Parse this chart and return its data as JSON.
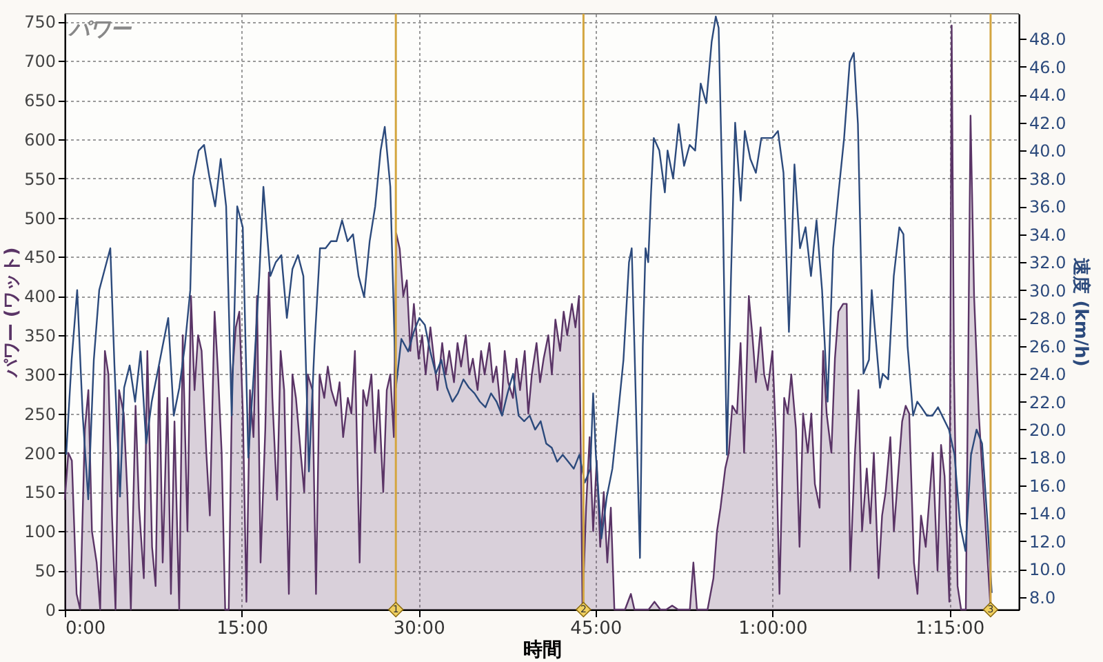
{
  "chart_data": {
    "type": "area",
    "title": "パワー",
    "xlabel": "時間",
    "ylabel": "パワー (ワット)",
    "y2label": "速度 (km/h)",
    "xlim": [
      0,
      80.9
    ],
    "xticks": [
      {
        "value": 0,
        "label": "0:00"
      },
      {
        "value": 15,
        "label": "15:00"
      },
      {
        "value": 30,
        "label": "30:00"
      },
      {
        "value": 45,
        "label": "45:00"
      },
      {
        "value": 60,
        "label": "1:00:00"
      },
      {
        "value": 75,
        "label": "1:15:00"
      }
    ],
    "ylim": [
      0,
      760
    ],
    "yticks": [
      0,
      50,
      100,
      150,
      200,
      250,
      300,
      350,
      400,
      450,
      500,
      550,
      600,
      650,
      700,
      750
    ],
    "y2lim": [
      7.1,
      49.8
    ],
    "y2ticks": [
      {
        "value": 8,
        "label": "8.0"
      },
      {
        "value": 10,
        "label": "10.0"
      },
      {
        "value": 12,
        "label": "12.0"
      },
      {
        "value": 14,
        "label": "14.0"
      },
      {
        "value": 16,
        "label": "16.0"
      },
      {
        "value": 18,
        "label": "18.0"
      },
      {
        "value": 20,
        "label": "20.0"
      },
      {
        "value": 22,
        "label": "22.0"
      },
      {
        "value": 24,
        "label": "24.0"
      },
      {
        "value": 26,
        "label": "26.0"
      },
      {
        "value": 28,
        "label": "28.0"
      },
      {
        "value": 30,
        "label": "30.0"
      },
      {
        "value": 32,
        "label": "32.0"
      },
      {
        "value": 34,
        "label": "34.0"
      },
      {
        "value": 36,
        "label": "36.0"
      },
      {
        "value": 38,
        "label": "38.0"
      },
      {
        "value": 40,
        "label": "40.0"
      },
      {
        "value": 42,
        "label": "42.0"
      },
      {
        "value": 44,
        "label": "44.0"
      },
      {
        "value": 46,
        "label": "46.0"
      },
      {
        "value": 48,
        "label": "48.0"
      }
    ],
    "grid": true,
    "ref_lines": [
      {
        "axis": "x",
        "value": 28.07,
        "color": "#d4a640"
      },
      {
        "axis": "x",
        "value": 43.98,
        "color": "#d4a640"
      },
      {
        "axis": "x",
        "value": 78.5,
        "color": "#d4a640"
      }
    ],
    "annotations": [
      {
        "text": "1",
        "x": 28.07,
        "y": 0
      },
      {
        "text": "2",
        "x": 43.98,
        "y": 0
      },
      {
        "text": "3",
        "x": 78.5,
        "y": 0
      }
    ],
    "series": [
      {
        "color": "#5a3466",
        "axis": "y",
        "x": [
          0,
          0.3,
          0.6,
          1.0,
          1.3,
          1.7,
          2.0,
          2.3,
          2.7,
          3.0,
          3.4,
          3.7,
          4.0,
          4.3,
          4.6,
          5.0,
          5.3,
          5.6,
          6.0,
          6.3,
          6.7,
          7.0,
          7.4,
          7.7,
          8.0,
          8.3,
          8.7,
          9.0,
          9.3,
          9.7,
          10.0,
          10.4,
          10.7,
          11.0,
          11.3,
          11.6,
          12.0,
          12.3,
          12.7,
          13.0,
          13.3,
          13.6,
          13.9,
          14.2,
          14.5,
          14.8,
          15.1,
          15.4,
          15.7,
          16.0,
          16.3,
          16.6,
          17.0,
          17.3,
          17.6,
          18.0,
          18.3,
          18.6,
          19.0,
          19.3,
          19.6,
          20.0,
          20.3,
          20.6,
          21.0,
          21.3,
          21.6,
          22.0,
          22.3,
          22.6,
          23.0,
          23.3,
          23.6,
          24.0,
          24.3,
          24.6,
          25.0,
          25.3,
          25.6,
          26.0,
          26.3,
          26.6,
          27.0,
          27.3,
          27.6,
          27.9,
          28.1,
          28.4,
          28.7,
          29.0,
          29.3,
          29.6,
          30.0,
          30.3,
          30.6,
          31.0,
          31.3,
          31.6,
          32.0,
          32.3,
          32.6,
          33.0,
          33.3,
          33.6,
          34.0,
          34.3,
          34.6,
          35.0,
          35.3,
          35.6,
          36.0,
          36.3,
          36.6,
          37.0,
          37.3,
          37.6,
          38.0,
          38.3,
          38.6,
          39.0,
          39.3,
          39.6,
          40.0,
          40.3,
          40.6,
          41.0,
          41.3,
          41.6,
          42.0,
          42.3,
          42.6,
          43.0,
          43.3,
          43.6,
          43.9,
          44.2,
          44.5,
          44.8,
          45.1,
          45.4,
          45.7,
          46.0,
          46.3,
          46.6,
          47.0,
          47.5,
          48.0,
          48.3,
          49.0,
          49.5,
          50.0,
          50.5,
          51.0,
          51.5,
          52.0,
          53.0,
          53.3,
          53.6,
          54.5,
          55.0,
          55.3,
          55.6,
          56.0,
          56.3,
          56.6,
          57.0,
          57.3,
          57.6,
          58.0,
          58.3,
          58.6,
          59.0,
          59.3,
          59.6,
          60.0,
          60.3,
          60.6,
          61.0,
          61.3,
          61.6,
          62.0,
          62.3,
          62.6,
          63.0,
          63.3,
          63.6,
          64.0,
          64.3,
          64.6,
          65.0,
          65.3,
          65.6,
          66.0,
          66.3,
          66.6,
          67.0,
          67.3,
          67.6,
          68.0,
          68.3,
          68.6,
          69.0,
          69.3,
          69.6,
          70.0,
          70.3,
          70.6,
          71.0,
          71.3,
          71.6,
          72.0,
          72.3,
          72.6,
          73.0,
          73.3,
          73.6,
          74.0,
          74.3,
          74.6,
          75.0,
          75.2,
          75.4,
          75.7,
          76.0,
          76.4,
          76.8,
          77.1,
          77.5,
          77.9,
          78.3,
          78.5
        ],
        "values": [
          140,
          200,
          190,
          20,
          0,
          230,
          280,
          100,
          60,
          0,
          330,
          300,
          120,
          0,
          280,
          250,
          150,
          0,
          260,
          130,
          40,
          330,
          80,
          30,
          310,
          60,
          270,
          20,
          240,
          0,
          350,
          100,
          400,
          280,
          350,
          330,
          200,
          120,
          380,
          300,
          200,
          0,
          0,
          300,
          360,
          380,
          250,
          10,
          280,
          220,
          400,
          60,
          230,
          430,
          270,
          140,
          330,
          280,
          20,
          300,
          270,
          200,
          150,
          300,
          280,
          20,
          300,
          270,
          310,
          280,
          260,
          290,
          220,
          270,
          250,
          330,
          60,
          280,
          260,
          300,
          200,
          280,
          150,
          280,
          300,
          220,
          480,
          460,
          400,
          420,
          330,
          390,
          320,
          350,
          300,
          360,
          320,
          280,
          340,
          300,
          330,
          290,
          340,
          310,
          350,
          300,
          320,
          280,
          330,
          300,
          340,
          290,
          310,
          250,
          330,
          290,
          270,
          320,
          280,
          330,
          250,
          300,
          340,
          290,
          320,
          350,
          300,
          370,
          330,
          380,
          350,
          390,
          360,
          400,
          0,
          130,
          220,
          100,
          190,
          80,
          150,
          60,
          130,
          0,
          0,
          0,
          20,
          0,
          0,
          0,
          10,
          0,
          0,
          5,
          0,
          0,
          60,
          0,
          0,
          40,
          100,
          130,
          180,
          200,
          260,
          250,
          340,
          200,
          400,
          350,
          290,
          360,
          300,
          280,
          330,
          220,
          20,
          270,
          250,
          300,
          230,
          80,
          250,
          200,
          250,
          160,
          130,
          330,
          250,
          200,
          320,
          380,
          390,
          390,
          50,
          200,
          280,
          100,
          180,
          110,
          200,
          40,
          120,
          150,
          220,
          100,
          160,
          240,
          260,
          250,
          60,
          20,
          120,
          80,
          140,
          200,
          50,
          210,
          170,
          10,
          745,
          300,
          30,
          0,
          0,
          630,
          400,
          250,
          150,
          50,
          0
        ]
      },
      {
        "type": "line",
        "color": "#2c4a7c",
        "axis": "y2",
        "x": [
          0.12,
          0.58,
          1.05,
          1.52,
          1.99,
          2.46,
          2.92,
          3.39,
          3.86,
          4.21,
          4.68,
          5.03,
          5.5,
          5.96,
          6.43,
          6.9,
          7.37,
          7.84,
          8.3,
          8.77,
          9.24,
          9.71,
          10.18,
          10.64,
          10.88,
          11.35,
          11.81,
          12.28,
          12.75,
          13.22,
          13.68,
          14.15,
          14.62,
          15.09,
          15.56,
          16.02,
          16.49,
          16.84,
          17.43,
          17.89,
          18.36,
          18.83,
          19.3,
          19.77,
          20.23,
          20.7,
          21.17,
          21.64,
          22.11,
          22.57,
          23.04,
          23.51,
          23.98,
          24.44,
          24.91,
          25.38,
          25.85,
          26.32,
          26.78,
          27.13,
          27.6,
          28.07,
          28.54,
          29.12,
          29.59,
          30.06,
          30.53,
          30.99,
          31.46,
          31.93,
          32.4,
          32.87,
          33.33,
          33.8,
          34.27,
          34.74,
          35.2,
          35.67,
          36.14,
          36.61,
          37.08,
          37.54,
          38.01,
          38.48,
          38.95,
          39.42,
          39.88,
          40.35,
          40.82,
          41.29,
          41.75,
          42.22,
          42.69,
          43.16,
          43.63,
          44.09,
          44.56,
          44.8,
          45.03,
          45.5,
          45.96,
          46.43,
          46.9,
          47.37,
          47.84,
          48.07,
          48.3,
          48.54,
          48.77,
          49.01,
          49.24,
          49.47,
          49.71,
          49.94,
          50.41,
          50.88,
          51.11,
          51.58,
          52.05,
          52.51,
          52.98,
          53.45,
          53.92,
          54.39,
          54.85,
          55.2,
          55.44,
          55.79,
          56.14,
          56.49,
          56.84,
          57.31,
          57.66,
          58.13,
          58.6,
          59.06,
          59.53,
          60.0,
          60.47,
          60.94,
          61.4,
          61.87,
          62.34,
          62.81,
          63.27,
          63.74,
          64.21,
          64.68,
          65.15,
          65.61,
          66.08,
          66.55,
          66.9,
          67.25,
          67.72,
          68.19,
          68.42,
          68.65,
          69.12,
          69.36,
          69.82,
          70.29,
          70.76,
          71.11,
          71.46,
          71.93,
          72.28,
          72.63,
          73.1,
          73.57,
          74.04,
          74.97,
          75.44,
          75.91,
          76.37,
          76.84,
          77.31,
          77.78,
          78.25,
          78.6
        ],
        "values": [
          18.2,
          25,
          30,
          21,
          15,
          25,
          30,
          31.5,
          33,
          24.6,
          15.2,
          23,
          24.6,
          22,
          25.6,
          19,
          22,
          24,
          26,
          28,
          21,
          23,
          26,
          30,
          38,
          40,
          40.4,
          38,
          36,
          39.4,
          36,
          21,
          36,
          34.5,
          18,
          24,
          31,
          37.4,
          31,
          32,
          32.5,
          28,
          31.5,
          32.5,
          31,
          17,
          26,
          33,
          33,
          33.5,
          33.5,
          35,
          33.5,
          34,
          31,
          29.5,
          33.5,
          36,
          40,
          41.7,
          37.4,
          23,
          26.5,
          25.6,
          27,
          28,
          27.5,
          25.6,
          24,
          25,
          23,
          22,
          22.6,
          23.6,
          23,
          22.6,
          22,
          21.6,
          22.6,
          22,
          21,
          22.6,
          24,
          21,
          20.6,
          21,
          20,
          20.6,
          19,
          18.7,
          17.7,
          18.2,
          17.7,
          17.2,
          18.2,
          16.2,
          17.2,
          22.6,
          18.2,
          12.2,
          15.2,
          17.2,
          21,
          25,
          32,
          33,
          26,
          18.2,
          10.8,
          26,
          33,
          32,
          37,
          40.9,
          40,
          37,
          40,
          38,
          41.9,
          38.9,
          40.4,
          40,
          44.8,
          43.4,
          47.8,
          49.6,
          48.8,
          36,
          18.2,
          31,
          42,
          36.4,
          41.4,
          39.4,
          38.4,
          40.9,
          40.9,
          40.9,
          41.4,
          38.4,
          27,
          39,
          33,
          34.5,
          31,
          35,
          30,
          22,
          33,
          37,
          40.9,
          46.3,
          47,
          41.9,
          24,
          25,
          30,
          27.6,
          23,
          24,
          23.6,
          31,
          34.5,
          34,
          26,
          21,
          22,
          21.6,
          21,
          21,
          21.6,
          20,
          18.2,
          13.2,
          11.3,
          18.2,
          20,
          19,
          13.2,
          8.3
        ]
      }
    ]
  }
}
